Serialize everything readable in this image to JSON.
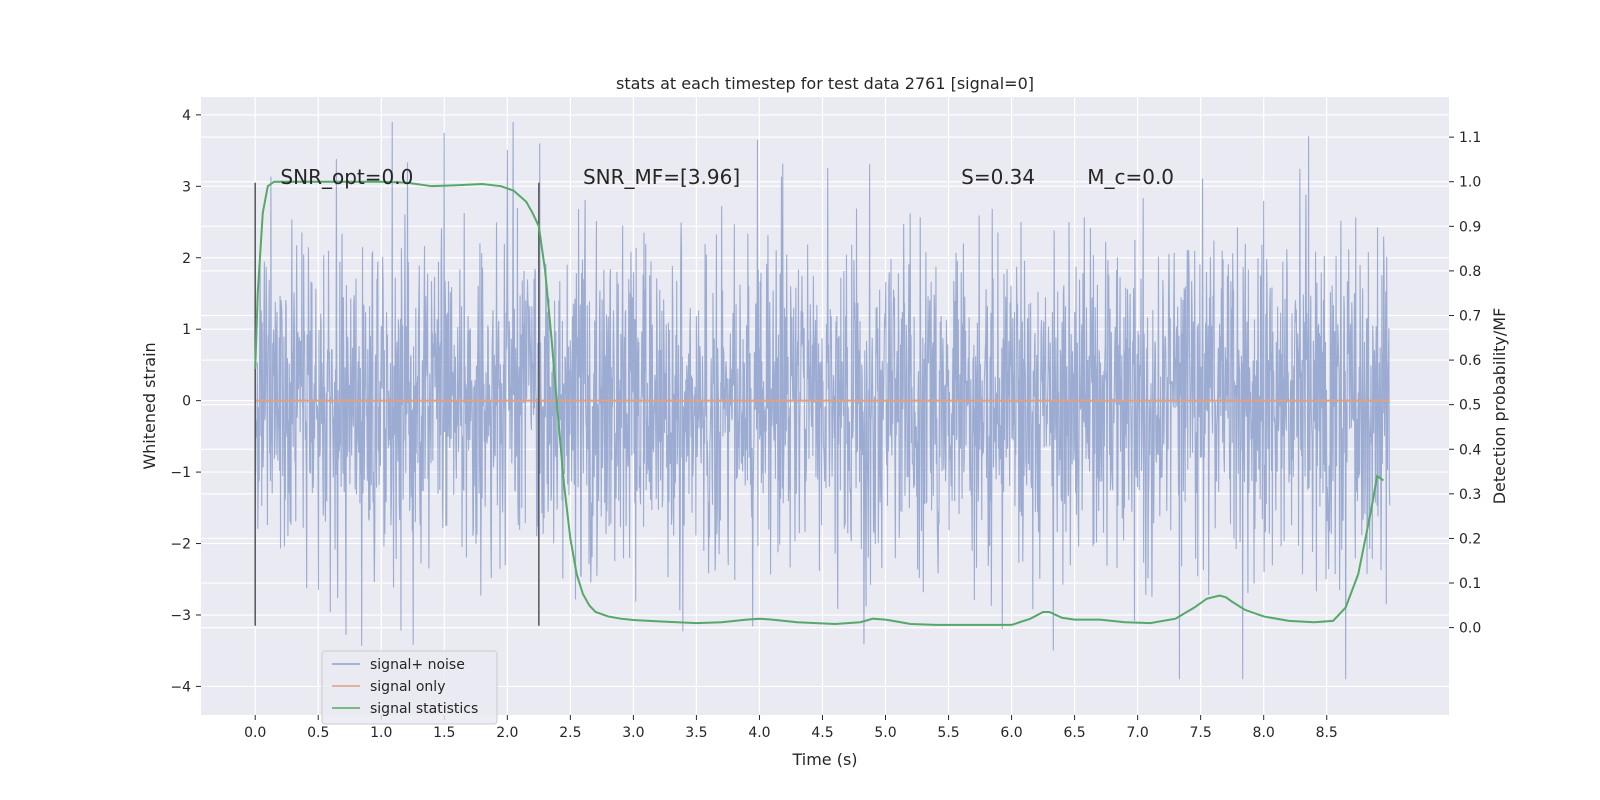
{
  "chart_data": {
    "type": "line",
    "title": "stats at each timestep for test data 2761 [signal=0]",
    "xlabel": "Time (s)",
    "ylabel": "Whitened strain",
    "y2label": "Detection probability/MF",
    "xlim": [
      -0.43,
      9.47
    ],
    "ylim": [
      -4.4,
      4.25
    ],
    "y2lim": [
      -0.196,
      1.19
    ],
    "x_ticks": [
      "0.0",
      "0.5",
      "1.0",
      "1.5",
      "2.0",
      "2.5",
      "3.0",
      "3.5",
      "4.0",
      "4.5",
      "5.0",
      "5.5",
      "6.0",
      "6.5",
      "7.0",
      "7.5",
      "8.0",
      "8.5"
    ],
    "y_ticks": [
      "4",
      "3",
      "2",
      "1",
      "0",
      "−1",
      "−2",
      "−3",
      "−4"
    ],
    "y2_ticks": [
      "1.1",
      "1.0",
      "0.9",
      "0.8",
      "0.7",
      "0.6",
      "0.5",
      "0.4",
      "0.3",
      "0.2",
      "0.1",
      "0.0"
    ],
    "grid": true,
    "legend_position": "lower-left",
    "annotations": [
      {
        "text": "SNR_opt=0.0",
        "x": 0.2
      },
      {
        "text": "SNR_MF=[3.96]",
        "x": 2.6
      },
      {
        "text": "S=0.34",
        "x": 5.6
      },
      {
        "text": "M_c=0.0",
        "x": 6.6
      }
    ],
    "vertical_markers": [
      0.0,
      2.25
    ],
    "series": [
      {
        "name": "signal+ noise",
        "color": "#8da0cb",
        "kind": "noise",
        "x_range": [
          0.0,
          9.0
        ],
        "typical_abs": 1.2,
        "max_abs": 3.9
      },
      {
        "name": "signal only",
        "color": "#e0a083",
        "kind": "flat",
        "x": [
          0.0,
          9.0
        ],
        "y": [
          0.0,
          0.0
        ]
      },
      {
        "name": "signal statistics",
        "color": "#55a868",
        "axis": "right",
        "x": [
          0.0,
          0.02,
          0.06,
          0.1,
          0.15,
          0.25,
          0.4,
          0.6,
          0.8,
          1.0,
          1.2,
          1.4,
          1.6,
          1.8,
          1.95,
          2.05,
          2.15,
          2.2,
          2.25,
          2.3,
          2.35,
          2.4,
          2.45,
          2.5,
          2.55,
          2.6,
          2.65,
          2.7,
          2.8,
          2.9,
          3.0,
          3.2,
          3.5,
          3.7,
          3.9,
          4.0,
          4.1,
          4.3,
          4.6,
          4.8,
          4.9,
          5.0,
          5.2,
          5.4,
          5.8,
          6.0,
          6.15,
          6.25,
          6.3,
          6.4,
          6.5,
          6.7,
          6.9,
          7.1,
          7.3,
          7.45,
          7.55,
          7.65,
          7.7,
          7.75,
          7.85,
          8.0,
          8.2,
          8.4,
          8.55,
          8.65,
          8.75,
          8.85,
          8.9,
          8.95
        ],
        "y": [
          0.58,
          0.75,
          0.93,
          0.99,
          1.0,
          1.0,
          1.0,
          1.0,
          1.0,
          1.0,
          0.998,
          0.99,
          0.992,
          0.995,
          0.99,
          0.98,
          0.955,
          0.93,
          0.9,
          0.8,
          0.65,
          0.48,
          0.32,
          0.2,
          0.12,
          0.075,
          0.05,
          0.035,
          0.025,
          0.02,
          0.017,
          0.014,
          0.01,
          0.012,
          0.018,
          0.02,
          0.018,
          0.012,
          0.008,
          0.012,
          0.02,
          0.018,
          0.008,
          0.006,
          0.006,
          0.006,
          0.02,
          0.035,
          0.035,
          0.022,
          0.018,
          0.018,
          0.012,
          0.01,
          0.02,
          0.045,
          0.065,
          0.072,
          0.068,
          0.058,
          0.04,
          0.025,
          0.015,
          0.012,
          0.015,
          0.045,
          0.12,
          0.26,
          0.34,
          0.33
        ]
      }
    ]
  }
}
